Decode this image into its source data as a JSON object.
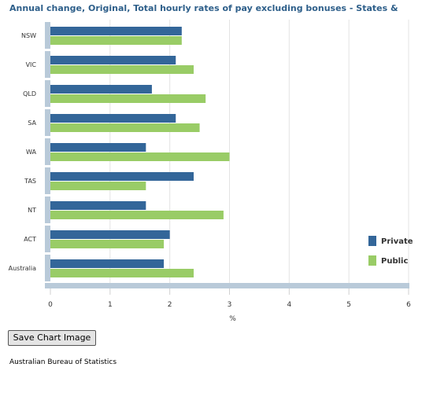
{
  "chart_data": {
    "type": "bar",
    "orientation": "horizontal",
    "title": "Annual change, Original, Total hourly rates of pay excluding bonuses - States &",
    "categories": [
      "NSW",
      "VIC",
      "QLD",
      "SA",
      "WA",
      "TAS",
      "NT",
      "ACT",
      "Australia"
    ],
    "series": [
      {
        "name": "Private",
        "color": "#336699",
        "values": [
          2.2,
          2.1,
          1.7,
          2.1,
          1.6,
          2.4,
          1.6,
          2.0,
          1.9
        ]
      },
      {
        "name": "Public",
        "color": "#99cc66",
        "values": [
          2.2,
          2.4,
          2.6,
          2.5,
          3.0,
          1.6,
          2.9,
          1.9,
          2.4
        ]
      }
    ],
    "xlim": [
      0,
      6
    ],
    "xticks": [
      "0",
      "1",
      "2",
      "3",
      "4",
      "5",
      "6"
    ],
    "xlabel": "%",
    "grid": true,
    "legend_position": "right"
  },
  "controls": {
    "save_button_label": "Save Chart Image"
  },
  "footer": {
    "source": "Australian Bureau of Statistics"
  }
}
